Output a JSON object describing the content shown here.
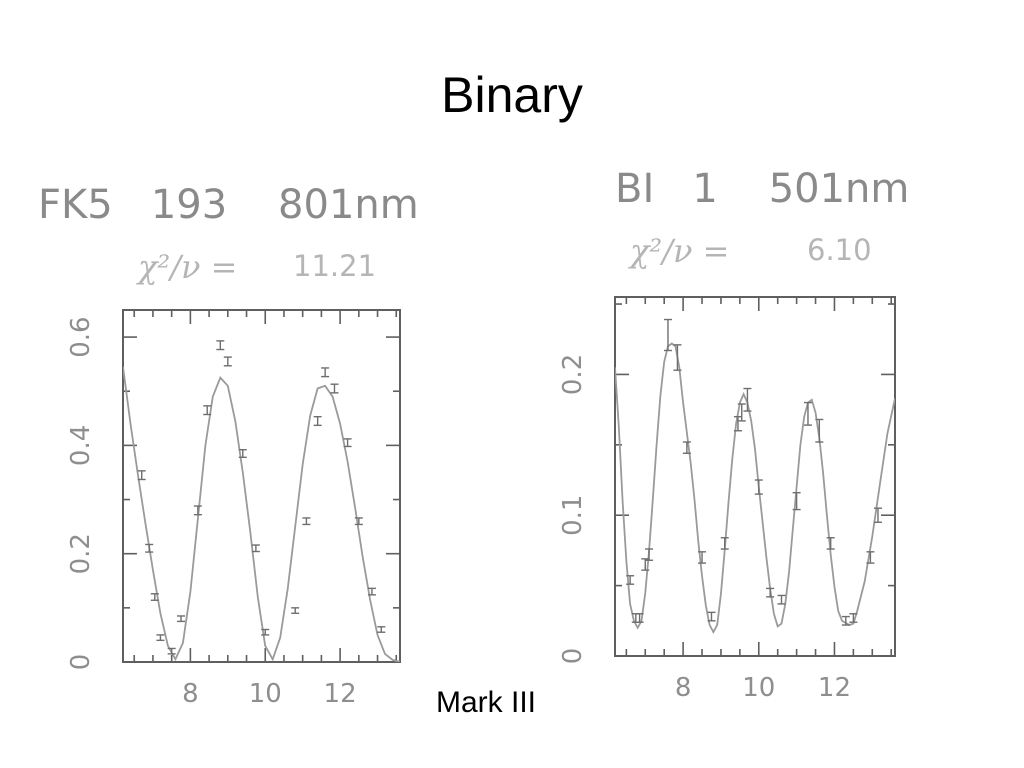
{
  "slide": {
    "title": "Binary",
    "caption": "Mark III"
  },
  "chart_data": [
    {
      "type": "scatter",
      "title": "FK5   193    801nm",
      "chi_label": "χ²/ν =",
      "chi_value": "11.21",
      "xlim": [
        6.2,
        13.6
      ],
      "ylim": [
        0,
        0.65
      ],
      "xticks": [
        8,
        10,
        12
      ],
      "xtick_labels": [
        "8",
        "10",
        "12"
      ],
      "yticks": [
        0,
        0.2,
        0.4,
        0.6
      ],
      "ytick_labels": [
        "0",
        "0.2",
        "0.4",
        "0.6"
      ],
      "grid": false,
      "points": [
        {
          "x": 6.7,
          "y": 0.345,
          "err": 0.008
        },
        {
          "x": 6.9,
          "y": 0.21,
          "err": 0.007
        },
        {
          "x": 7.05,
          "y": 0.12,
          "err": 0.006
        },
        {
          "x": 7.2,
          "y": 0.045,
          "err": 0.005
        },
        {
          "x": 7.5,
          "y": 0.02,
          "err": 0.005
        },
        {
          "x": 7.75,
          "y": 0.08,
          "err": 0.005
        },
        {
          "x": 8.2,
          "y": 0.28,
          "err": 0.008
        },
        {
          "x": 8.45,
          "y": 0.465,
          "err": 0.008
        },
        {
          "x": 8.8,
          "y": 0.585,
          "err": 0.008
        },
        {
          "x": 9.0,
          "y": 0.555,
          "err": 0.008
        },
        {
          "x": 9.4,
          "y": 0.385,
          "err": 0.007
        },
        {
          "x": 9.75,
          "y": 0.21,
          "err": 0.006
        },
        {
          "x": 10.0,
          "y": 0.055,
          "err": 0.005
        },
        {
          "x": 10.8,
          "y": 0.095,
          "err": 0.005
        },
        {
          "x": 11.1,
          "y": 0.26,
          "err": 0.006
        },
        {
          "x": 11.4,
          "y": 0.445,
          "err": 0.008
        },
        {
          "x": 11.6,
          "y": 0.535,
          "err": 0.008
        },
        {
          "x": 11.85,
          "y": 0.505,
          "err": 0.008
        },
        {
          "x": 12.2,
          "y": 0.405,
          "err": 0.007
        },
        {
          "x": 12.5,
          "y": 0.26,
          "err": 0.006
        },
        {
          "x": 12.85,
          "y": 0.13,
          "err": 0.006
        },
        {
          "x": 13.1,
          "y": 0.06,
          "err": 0.005
        }
      ],
      "model_curve": [
        [
          6.2,
          0.545
        ],
        [
          6.4,
          0.44
        ],
        [
          6.6,
          0.345
        ],
        [
          6.8,
          0.255
        ],
        [
          7.0,
          0.17
        ],
        [
          7.2,
          0.09
        ],
        [
          7.4,
          0.03
        ],
        [
          7.6,
          0.005
        ],
        [
          7.8,
          0.035
        ],
        [
          8.0,
          0.13
        ],
        [
          8.2,
          0.265
        ],
        [
          8.4,
          0.4
        ],
        [
          8.6,
          0.49
        ],
        [
          8.8,
          0.525
        ],
        [
          9.0,
          0.51
        ],
        [
          9.2,
          0.445
        ],
        [
          9.4,
          0.35
        ],
        [
          9.6,
          0.24
        ],
        [
          9.8,
          0.12
        ],
        [
          10.0,
          0.03
        ],
        [
          10.2,
          0.005
        ],
        [
          10.4,
          0.045
        ],
        [
          10.6,
          0.135
        ],
        [
          10.8,
          0.25
        ],
        [
          11.0,
          0.365
        ],
        [
          11.2,
          0.455
        ],
        [
          11.4,
          0.505
        ],
        [
          11.6,
          0.51
        ],
        [
          11.8,
          0.49
        ],
        [
          12.0,
          0.44
        ],
        [
          12.2,
          0.37
        ],
        [
          12.4,
          0.285
        ],
        [
          12.6,
          0.195
        ],
        [
          12.8,
          0.115
        ],
        [
          13.0,
          0.05
        ],
        [
          13.2,
          0.015
        ],
        [
          13.4,
          0.004
        ],
        [
          13.6,
          0.0
        ]
      ]
    },
    {
      "type": "scatter",
      "title": "BI   1    501nm",
      "chi_label": "χ²/ν =",
      "chi_value": "6.10",
      "xlim": [
        6.2,
        13.6
      ],
      "ylim": [
        0,
        0.255
      ],
      "xticks": [
        8,
        10,
        12
      ],
      "xtick_labels": [
        "8",
        "10",
        "12"
      ],
      "yticks": [
        0,
        0.1,
        0.2
      ],
      "ytick_labels": [
        "0",
        "0.1",
        "0.2"
      ],
      "grid": false,
      "points": [
        {
          "x": 6.6,
          "y": 0.054,
          "err": 0.003
        },
        {
          "x": 6.75,
          "y": 0.027,
          "err": 0.003
        },
        {
          "x": 6.85,
          "y": 0.027,
          "err": 0.003
        },
        {
          "x": 7.0,
          "y": 0.065,
          "err": 0.004
        },
        {
          "x": 7.1,
          "y": 0.072,
          "err": 0.004
        },
        {
          "x": 7.6,
          "y": 0.228,
          "err": 0.011
        },
        {
          "x": 7.85,
          "y": 0.212,
          "err": 0.009
        },
        {
          "x": 8.1,
          "y": 0.148,
          "err": 0.004
        },
        {
          "x": 8.5,
          "y": 0.07,
          "err": 0.004
        },
        {
          "x": 8.75,
          "y": 0.028,
          "err": 0.003
        },
        {
          "x": 9.1,
          "y": 0.08,
          "err": 0.004
        },
        {
          "x": 9.45,
          "y": 0.165,
          "err": 0.005
        },
        {
          "x": 9.55,
          "y": 0.173,
          "err": 0.006
        },
        {
          "x": 9.7,
          "y": 0.182,
          "err": 0.008
        },
        {
          "x": 10.0,
          "y": 0.12,
          "err": 0.005
        },
        {
          "x": 10.3,
          "y": 0.045,
          "err": 0.003
        },
        {
          "x": 10.6,
          "y": 0.04,
          "err": 0.003
        },
        {
          "x": 11.0,
          "y": 0.11,
          "err": 0.006
        },
        {
          "x": 11.3,
          "y": 0.172,
          "err": 0.008
        },
        {
          "x": 11.6,
          "y": 0.16,
          "err": 0.008
        },
        {
          "x": 11.9,
          "y": 0.08,
          "err": 0.004
        },
        {
          "x": 12.3,
          "y": 0.025,
          "err": 0.003
        },
        {
          "x": 12.5,
          "y": 0.027,
          "err": 0.003
        },
        {
          "x": 12.95,
          "y": 0.07,
          "err": 0.004
        },
        {
          "x": 13.15,
          "y": 0.1,
          "err": 0.005
        }
      ],
      "model_curve": [
        [
          6.2,
          0.205
        ],
        [
          6.3,
          0.163
        ],
        [
          6.4,
          0.11
        ],
        [
          6.5,
          0.067
        ],
        [
          6.6,
          0.037
        ],
        [
          6.7,
          0.025
        ],
        [
          6.8,
          0.02
        ],
        [
          6.9,
          0.025
        ],
        [
          7.0,
          0.045
        ],
        [
          7.1,
          0.075
        ],
        [
          7.2,
          0.111
        ],
        [
          7.3,
          0.15
        ],
        [
          7.4,
          0.185
        ],
        [
          7.5,
          0.209
        ],
        [
          7.6,
          0.22
        ],
        [
          7.7,
          0.222
        ],
        [
          7.8,
          0.22
        ],
        [
          7.9,
          0.205
        ],
        [
          8.0,
          0.18
        ],
        [
          8.2,
          0.137
        ],
        [
          8.3,
          0.111
        ],
        [
          8.4,
          0.082
        ],
        [
          8.5,
          0.057
        ],
        [
          8.6,
          0.036
        ],
        [
          8.7,
          0.022
        ],
        [
          8.8,
          0.017
        ],
        [
          8.9,
          0.022
        ],
        [
          9.0,
          0.044
        ],
        [
          9.1,
          0.075
        ],
        [
          9.2,
          0.109
        ],
        [
          9.3,
          0.14
        ],
        [
          9.4,
          0.165
        ],
        [
          9.5,
          0.18
        ],
        [
          9.6,
          0.186
        ],
        [
          9.7,
          0.18
        ],
        [
          9.8,
          0.167
        ],
        [
          9.9,
          0.147
        ],
        [
          10.0,
          0.12
        ],
        [
          10.1,
          0.095
        ],
        [
          10.2,
          0.07
        ],
        [
          10.3,
          0.048
        ],
        [
          10.4,
          0.03
        ],
        [
          10.5,
          0.021
        ],
        [
          10.6,
          0.023
        ],
        [
          10.7,
          0.037
        ],
        [
          10.8,
          0.06
        ],
        [
          10.9,
          0.09
        ],
        [
          11.0,
          0.12
        ],
        [
          11.1,
          0.15
        ],
        [
          11.2,
          0.17
        ],
        [
          11.3,
          0.18
        ],
        [
          11.4,
          0.182
        ],
        [
          11.5,
          0.173
        ],
        [
          11.6,
          0.155
        ],
        [
          11.7,
          0.13
        ],
        [
          11.8,
          0.1
        ],
        [
          11.9,
          0.072
        ],
        [
          12.0,
          0.049
        ],
        [
          12.1,
          0.032
        ],
        [
          12.2,
          0.025
        ],
        [
          12.4,
          0.022
        ],
        [
          12.5,
          0.023
        ],
        [
          12.6,
          0.032
        ],
        [
          12.8,
          0.053
        ],
        [
          13.0,
          0.085
        ],
        [
          13.2,
          0.122
        ],
        [
          13.4,
          0.158
        ],
        [
          13.6,
          0.183
        ]
      ]
    }
  ]
}
